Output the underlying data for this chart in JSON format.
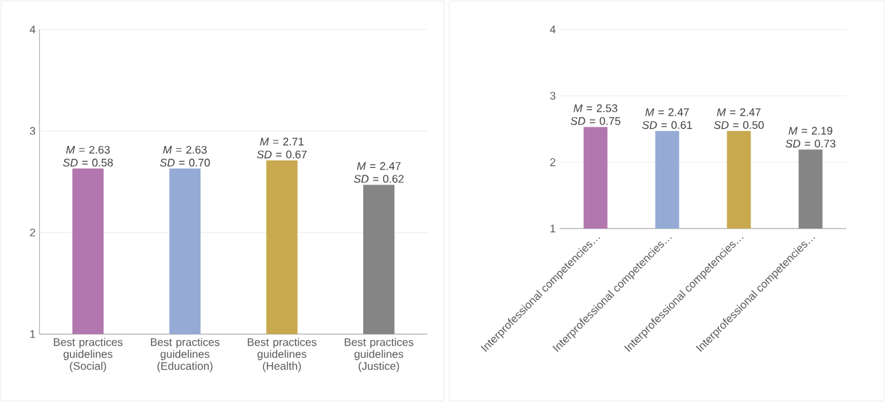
{
  "chart_data": [
    {
      "type": "bar",
      "categories": [
        "Best practices guidelines (Social)",
        "Best practices guidelines (Education)",
        "Best practices guidelines (Health)",
        "Best practices guidelines (Justice)"
      ],
      "values": [
        2.63,
        2.63,
        2.71,
        2.47
      ],
      "colors": [
        "#b277ae",
        "#95abd6",
        "#c9a94f",
        "#858585"
      ],
      "value_labels": [
        "*M* = 2.63 *SD* = 0.58",
        "*M* = 2.63 *SD* = 0.70",
        "*M* = 2.71 *SD* = 0.67",
        "*M* = 2.47 *SD* = 0.62"
      ],
      "ylim": [
        1,
        4
      ],
      "yticks": [
        1,
        2,
        3,
        4
      ],
      "grid": "y"
    },
    {
      "type": "bar",
      "categories": [
        "Interprofessional competencies…",
        "Interprofessional competencies…",
        "Interprofessional competencies…",
        "Interprofessional competencies…"
      ],
      "values": [
        2.53,
        2.47,
        2.47,
        2.19
      ],
      "colors": [
        "#b277ae",
        "#95abd6",
        "#c9a94f",
        "#858585"
      ],
      "value_labels": [
        "*M* = 2.53 *SD* = 0.75",
        "*M* = 2.47 *SD* = 0.61",
        "*M* = 2.47 *SD* = 0.50",
        "*M* = 2.19 *SD* = 0.73"
      ],
      "ylim": [
        1,
        4
      ],
      "yticks": [
        1,
        2,
        3,
        4
      ],
      "grid": "y"
    }
  ]
}
